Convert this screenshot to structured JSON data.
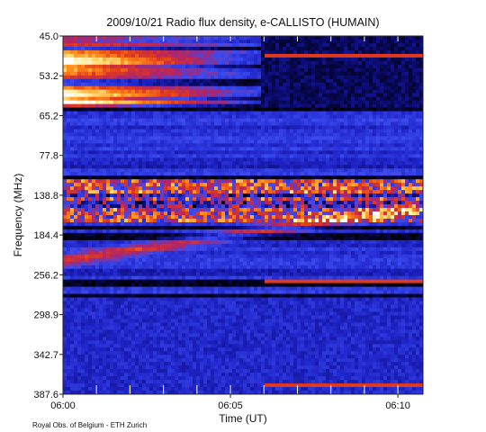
{
  "chart_data": {
    "type": "heatmap",
    "title": "2009/10/21  Radio flux density, e-CALLISTO (HUMAIN)",
    "xlabel": "Time (UT)",
    "ylabel": "Frequency (MHz)",
    "x_ticks": [
      "06:00",
      "06:05",
      "06:10"
    ],
    "y_ticks": [
      "45.0",
      "53.2",
      "65.2",
      "77.8",
      "138.8",
      "184.4",
      "256.2",
      "298.9",
      "342.7",
      "387.6"
    ],
    "xlim": [
      "06:00",
      "06:10:45"
    ],
    "ylim": [
      45.0,
      387.6
    ],
    "colormap": [
      "#000000",
      "#0b0b6e",
      "#1f24c8",
      "#3b4cf0",
      "#b0246a",
      "#e23a1a",
      "#ff8c1a",
      "#ffe680",
      "#ffffff"
    ],
    "credit": "Royal Obs. of Belgium - ETH Zurich"
  }
}
